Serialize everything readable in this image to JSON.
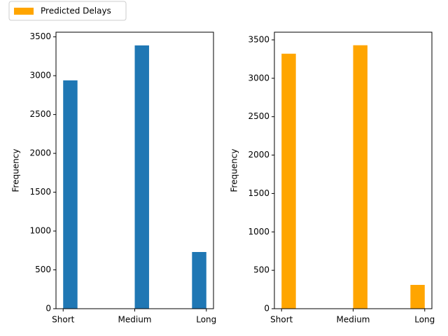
{
  "chart_data": [
    {
      "type": "histogram",
      "ylabel": "Frequency",
      "color": "#1f77b4",
      "bins": [
        0,
        0.2,
        0.4,
        0.6,
        0.8,
        1.0,
        1.2,
        1.4,
        1.6,
        1.8,
        2.0
      ],
      "values": [
        2940,
        0,
        0,
        0,
        0,
        3390,
        0,
        0,
        0,
        730
      ],
      "xlim": [
        -0.1,
        2.1
      ],
      "ylim": [
        0,
        3560
      ],
      "xticks": [
        {
          "value": 0,
          "label": "Short"
        },
        {
          "value": 1,
          "label": "Medium"
        },
        {
          "value": 2,
          "label": "Long"
        }
      ],
      "yticks": [
        0,
        500,
        1000,
        1500,
        2000,
        2500,
        3000,
        3500
      ]
    },
    {
      "type": "histogram",
      "ylabel": "Frequency",
      "name": "Predicted Delays",
      "color": "#ffa500",
      "bins": [
        0,
        0.2,
        0.4,
        0.6,
        0.8,
        1.0,
        1.2,
        1.4,
        1.6,
        1.8,
        2.0
      ],
      "values": [
        3320,
        0,
        0,
        0,
        0,
        3430,
        0,
        0,
        0,
        310
      ],
      "xlim": [
        -0.1,
        2.1
      ],
      "ylim": [
        0,
        3600
      ],
      "xticks": [
        {
          "value": 0,
          "label": "Short"
        },
        {
          "value": 1,
          "label": "Medium"
        },
        {
          "value": 2,
          "label": "Long"
        }
      ],
      "yticks": [
        0,
        500,
        1000,
        1500,
        2000,
        2500,
        3000,
        3500
      ]
    }
  ]
}
